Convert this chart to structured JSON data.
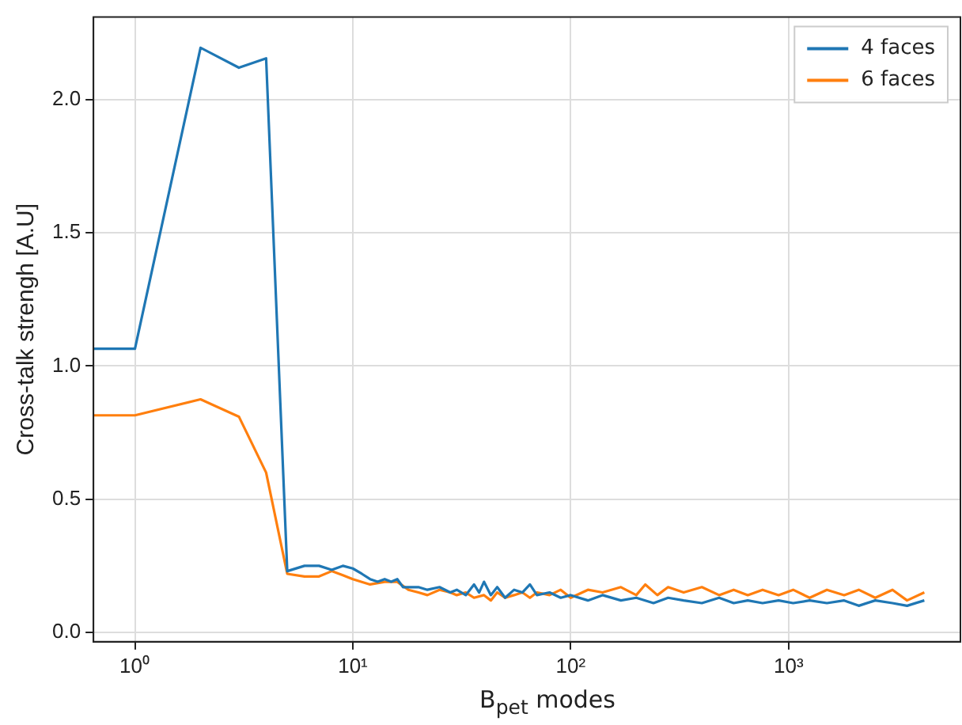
{
  "chart_data": {
    "type": "line",
    "xlabel": "B$_{pet}$ modes",
    "ylabel": "Cross-talk strengh [A.U]",
    "log": "x",
    "xlim": [
      0.645,
      6150
    ],
    "ylim": [
      -0.035,
      2.31
    ],
    "xticks": [
      {
        "value": 1,
        "label": "10⁰"
      },
      {
        "value": 10,
        "label": "10¹"
      },
      {
        "value": 100,
        "label": "10²"
      },
      {
        "value": 1000,
        "label": "10³"
      }
    ],
    "yticks": [
      {
        "value": 0,
        "label": "0.0"
      },
      {
        "value": 0.5,
        "label": "0.5"
      },
      {
        "value": 1,
        "label": "1.0"
      },
      {
        "value": 1.5,
        "label": "1.5"
      },
      {
        "value": 2,
        "label": "2.0"
      }
    ],
    "grid": true,
    "legend": "top right",
    "marker": "none",
    "line_style": "solid",
    "series": [
      {
        "name": "4 faces",
        "color": "#1f77b4",
        "x": [
          0.645,
          1,
          2,
          3,
          4,
          5,
          6,
          7,
          8,
          9,
          10,
          11,
          12,
          13,
          14,
          15,
          16,
          17,
          20,
          22,
          25,
          28,
          30,
          33,
          36,
          38,
          40,
          43,
          46,
          50,
          55,
          60,
          65,
          70,
          80,
          90,
          100,
          120,
          140,
          170,
          200,
          240,
          280,
          330,
          400,
          480,
          560,
          650,
          760,
          900,
          1050,
          1250,
          1500,
          1800,
          2100,
          2500,
          3000,
          3500,
          4200
        ],
        "values": [
          1.065,
          1.065,
          2.195,
          2.12,
          2.155,
          0.23,
          0.25,
          0.25,
          0.235,
          0.25,
          0.24,
          0.22,
          0.2,
          0.19,
          0.2,
          0.19,
          0.2,
          0.17,
          0.17,
          0.16,
          0.17,
          0.15,
          0.16,
          0.14,
          0.18,
          0.15,
          0.19,
          0.14,
          0.17,
          0.13,
          0.16,
          0.15,
          0.18,
          0.14,
          0.15,
          0.13,
          0.14,
          0.12,
          0.14,
          0.12,
          0.13,
          0.11,
          0.13,
          0.12,
          0.11,
          0.13,
          0.11,
          0.12,
          0.11,
          0.12,
          0.11,
          0.12,
          0.11,
          0.12,
          0.1,
          0.12,
          0.11,
          0.1,
          0.12
        ]
      },
      {
        "name": "6 faces",
        "color": "#ff7f0e",
        "x": [
          0.645,
          1,
          2,
          3,
          4,
          5,
          6,
          7,
          8,
          9,
          10,
          12,
          14,
          16,
          18,
          20,
          22,
          25,
          28,
          30,
          33,
          36,
          40,
          43,
          46,
          50,
          55,
          60,
          65,
          70,
          80,
          90,
          100,
          120,
          140,
          170,
          200,
          220,
          250,
          280,
          330,
          400,
          480,
          560,
          650,
          760,
          900,
          1050,
          1250,
          1500,
          1800,
          2100,
          2500,
          3000,
          3500,
          4200
        ],
        "values": [
          0.815,
          0.815,
          0.875,
          0.81,
          0.6,
          0.22,
          0.21,
          0.21,
          0.23,
          0.215,
          0.2,
          0.18,
          0.19,
          0.19,
          0.16,
          0.15,
          0.14,
          0.16,
          0.15,
          0.14,
          0.15,
          0.13,
          0.14,
          0.12,
          0.15,
          0.13,
          0.14,
          0.15,
          0.13,
          0.15,
          0.14,
          0.16,
          0.13,
          0.16,
          0.15,
          0.17,
          0.14,
          0.18,
          0.14,
          0.17,
          0.15,
          0.17,
          0.14,
          0.16,
          0.14,
          0.16,
          0.14,
          0.16,
          0.13,
          0.16,
          0.14,
          0.16,
          0.13,
          0.16,
          0.12,
          0.15
        ]
      }
    ]
  }
}
